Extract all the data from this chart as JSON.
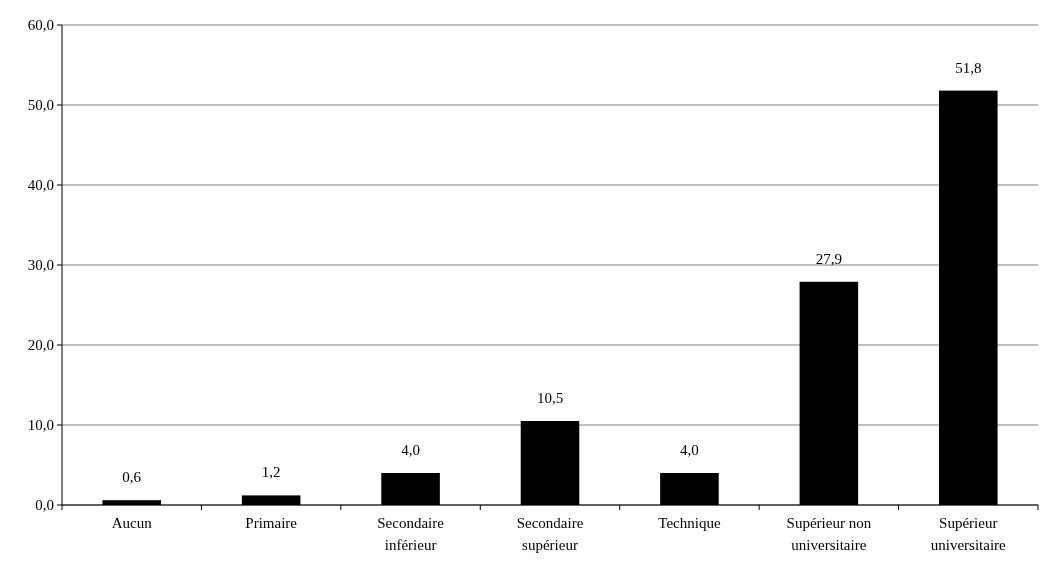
{
  "chart_data": {
    "type": "bar",
    "categories": [
      "Aucun",
      "Primaire",
      "Secondaire inférieur",
      "Secondaire supérieur",
      "Technique",
      "Supérieur non universitaire",
      "Supérieur universitaire"
    ],
    "values": [
      0.6,
      1.2,
      4.0,
      10.5,
      4.0,
      27.9,
      51.8
    ],
    "value_labels": [
      "0,6",
      "1,2",
      "4,0",
      "10,5",
      "4,0",
      "27,9",
      "51,8"
    ],
    "color": "#000000",
    "ylim": [
      0,
      60
    ],
    "yticks": [
      {
        "value": 0,
        "label": "0,0"
      },
      {
        "value": 10,
        "label": "10,0"
      },
      {
        "value": 20,
        "label": "20,0"
      },
      {
        "value": 30,
        "label": "30,0"
      },
      {
        "value": 40,
        "label": "40,0"
      },
      {
        "value": 50,
        "label": "50,0"
      },
      {
        "value": 60,
        "label": "60,0"
      }
    ],
    "grid": "y"
  }
}
